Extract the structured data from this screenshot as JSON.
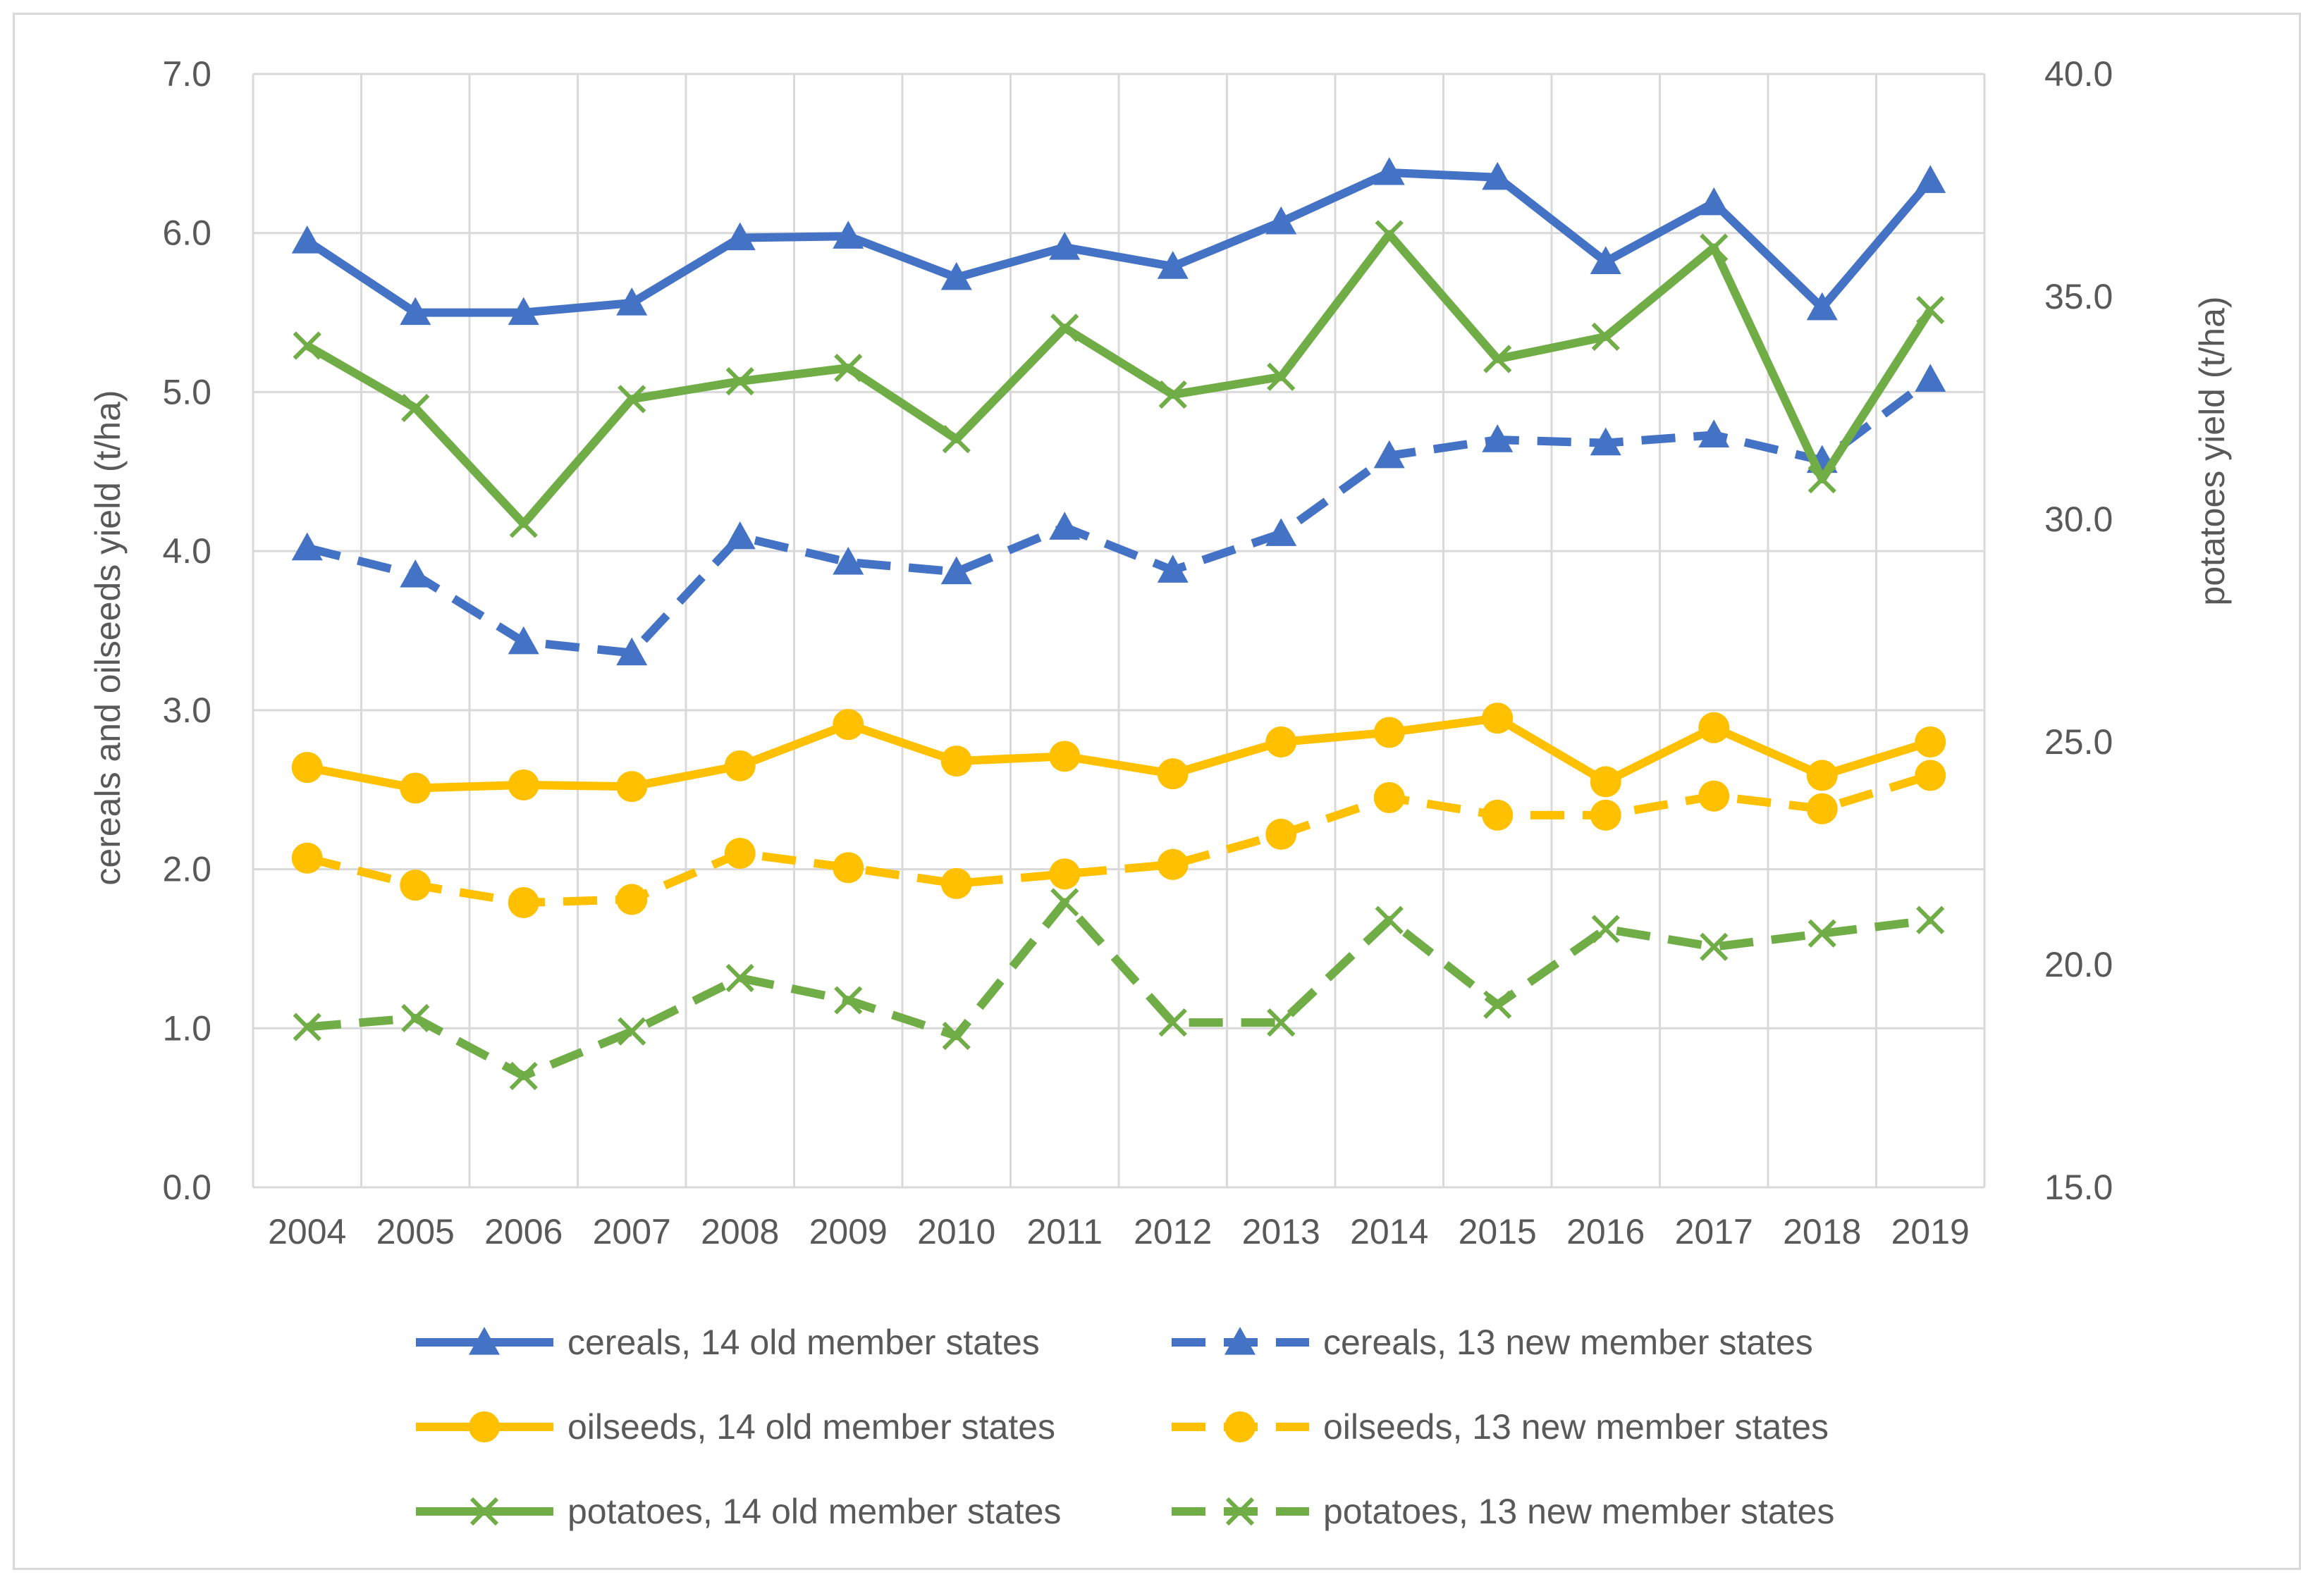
{
  "chart_data": {
    "type": "line",
    "title": "",
    "categories": [
      "2004",
      "2005",
      "2006",
      "2007",
      "2008",
      "2009",
      "2010",
      "2011",
      "2012",
      "2013",
      "2014",
      "2015",
      "2016",
      "2017",
      "2018",
      "2019"
    ],
    "y_left": {
      "label": "cereals and oilseeds yield (t/ha)",
      "min": 0,
      "max": 7,
      "step": 1,
      "ticks": [
        "0.0",
        "1.0",
        "2.0",
        "3.0",
        "4.0",
        "5.0",
        "6.0",
        "7.0"
      ]
    },
    "y_right": {
      "label": "potatoes yield (t/ha)",
      "min": 15,
      "max": 40,
      "step": 5,
      "ticks": [
        "15.0",
        "20.0",
        "25.0",
        "30.0",
        "35.0",
        "40.0"
      ]
    },
    "grid": true,
    "legend_position": "bottom",
    "series": [
      {
        "name": "cereals, 14 old member states",
        "axis": "left",
        "color": "#4472C4",
        "dash": false,
        "marker": "triangle",
        "values": [
          5.95,
          5.5,
          5.5,
          5.56,
          5.97,
          5.98,
          5.72,
          5.91,
          5.79,
          6.07,
          6.38,
          6.35,
          5.82,
          6.19,
          5.53,
          6.33
        ]
      },
      {
        "name": "cereals, 13 new member states",
        "axis": "left",
        "color": "#4472C4",
        "dash": true,
        "marker": "triangle",
        "values": [
          4.02,
          3.85,
          3.43,
          3.36,
          4.09,
          3.93,
          3.87,
          4.15,
          3.88,
          4.11,
          4.6,
          4.7,
          4.68,
          4.73,
          4.57,
          5.08
        ]
      },
      {
        "name": "oilseeds, 14 old member states",
        "axis": "left",
        "color": "#FFC000",
        "dash": false,
        "marker": "circle",
        "values": [
          2.64,
          2.51,
          2.53,
          2.52,
          2.65,
          2.91,
          2.68,
          2.71,
          2.6,
          2.8,
          2.86,
          2.95,
          2.55,
          2.89,
          2.59,
          2.8
        ]
      },
      {
        "name": "oilseeds, 13 new member states",
        "axis": "left",
        "color": "#FFC000",
        "dash": true,
        "marker": "circle",
        "values": [
          2.07,
          1.9,
          1.79,
          1.81,
          2.1,
          2.01,
          1.91,
          1.97,
          2.03,
          2.22,
          2.45,
          2.34,
          2.34,
          2.46,
          2.38,
          2.59
        ]
      },
      {
        "name": "potatoes, 14 old member states",
        "axis": "right",
        "color": "#70AD47",
        "dash": false,
        "marker": "x",
        "values": [
          33.9,
          32.5,
          29.9,
          32.7,
          33.1,
          33.4,
          31.8,
          34.3,
          32.8,
          33.2,
          36.4,
          33.6,
          34.1,
          36.1,
          30.9,
          34.7
        ]
      },
      {
        "name": "potatoes, 13 new member states",
        "axis": "right",
        "color": "#70AD47",
        "dash": true,
        "marker": "x",
        "values": [
          18.6,
          18.8,
          17.5,
          18.5,
          19.7,
          19.2,
          18.4,
          21.4,
          18.7,
          18.7,
          21.0,
          19.1,
          20.8,
          20.4,
          20.7,
          21.0
        ]
      }
    ]
  }
}
